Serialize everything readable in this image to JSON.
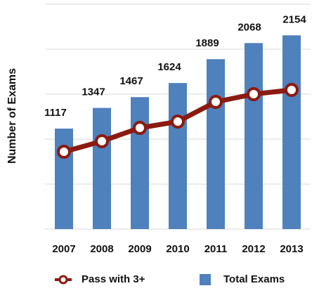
{
  "chart_data": {
    "type": "bar-line",
    "y_label": "Number of Exams",
    "categories": [
      "2007",
      "2008",
      "2009",
      "2010",
      "2011",
      "2012",
      "2013"
    ],
    "series": [
      {
        "name": "Total Exams",
        "type": "bar",
        "color": "#4f81bd",
        "values": [
          1117,
          1347,
          1467,
          1624,
          1889,
          2068,
          2154
        ]
      },
      {
        "name": "Pass with 3+",
        "type": "line",
        "color": "#8b1a10",
        "values": [
          859,
          977,
          1125,
          1195,
          1414,
          1500,
          1547
        ]
      }
    ],
    "show_value_labels": [
      true,
      false
    ],
    "ylim": [
      0,
      2500
    ],
    "yticks": [
      0,
      500,
      1000,
      1500,
      2000,
      2500
    ],
    "grid": true,
    "legend": "bottom"
  }
}
